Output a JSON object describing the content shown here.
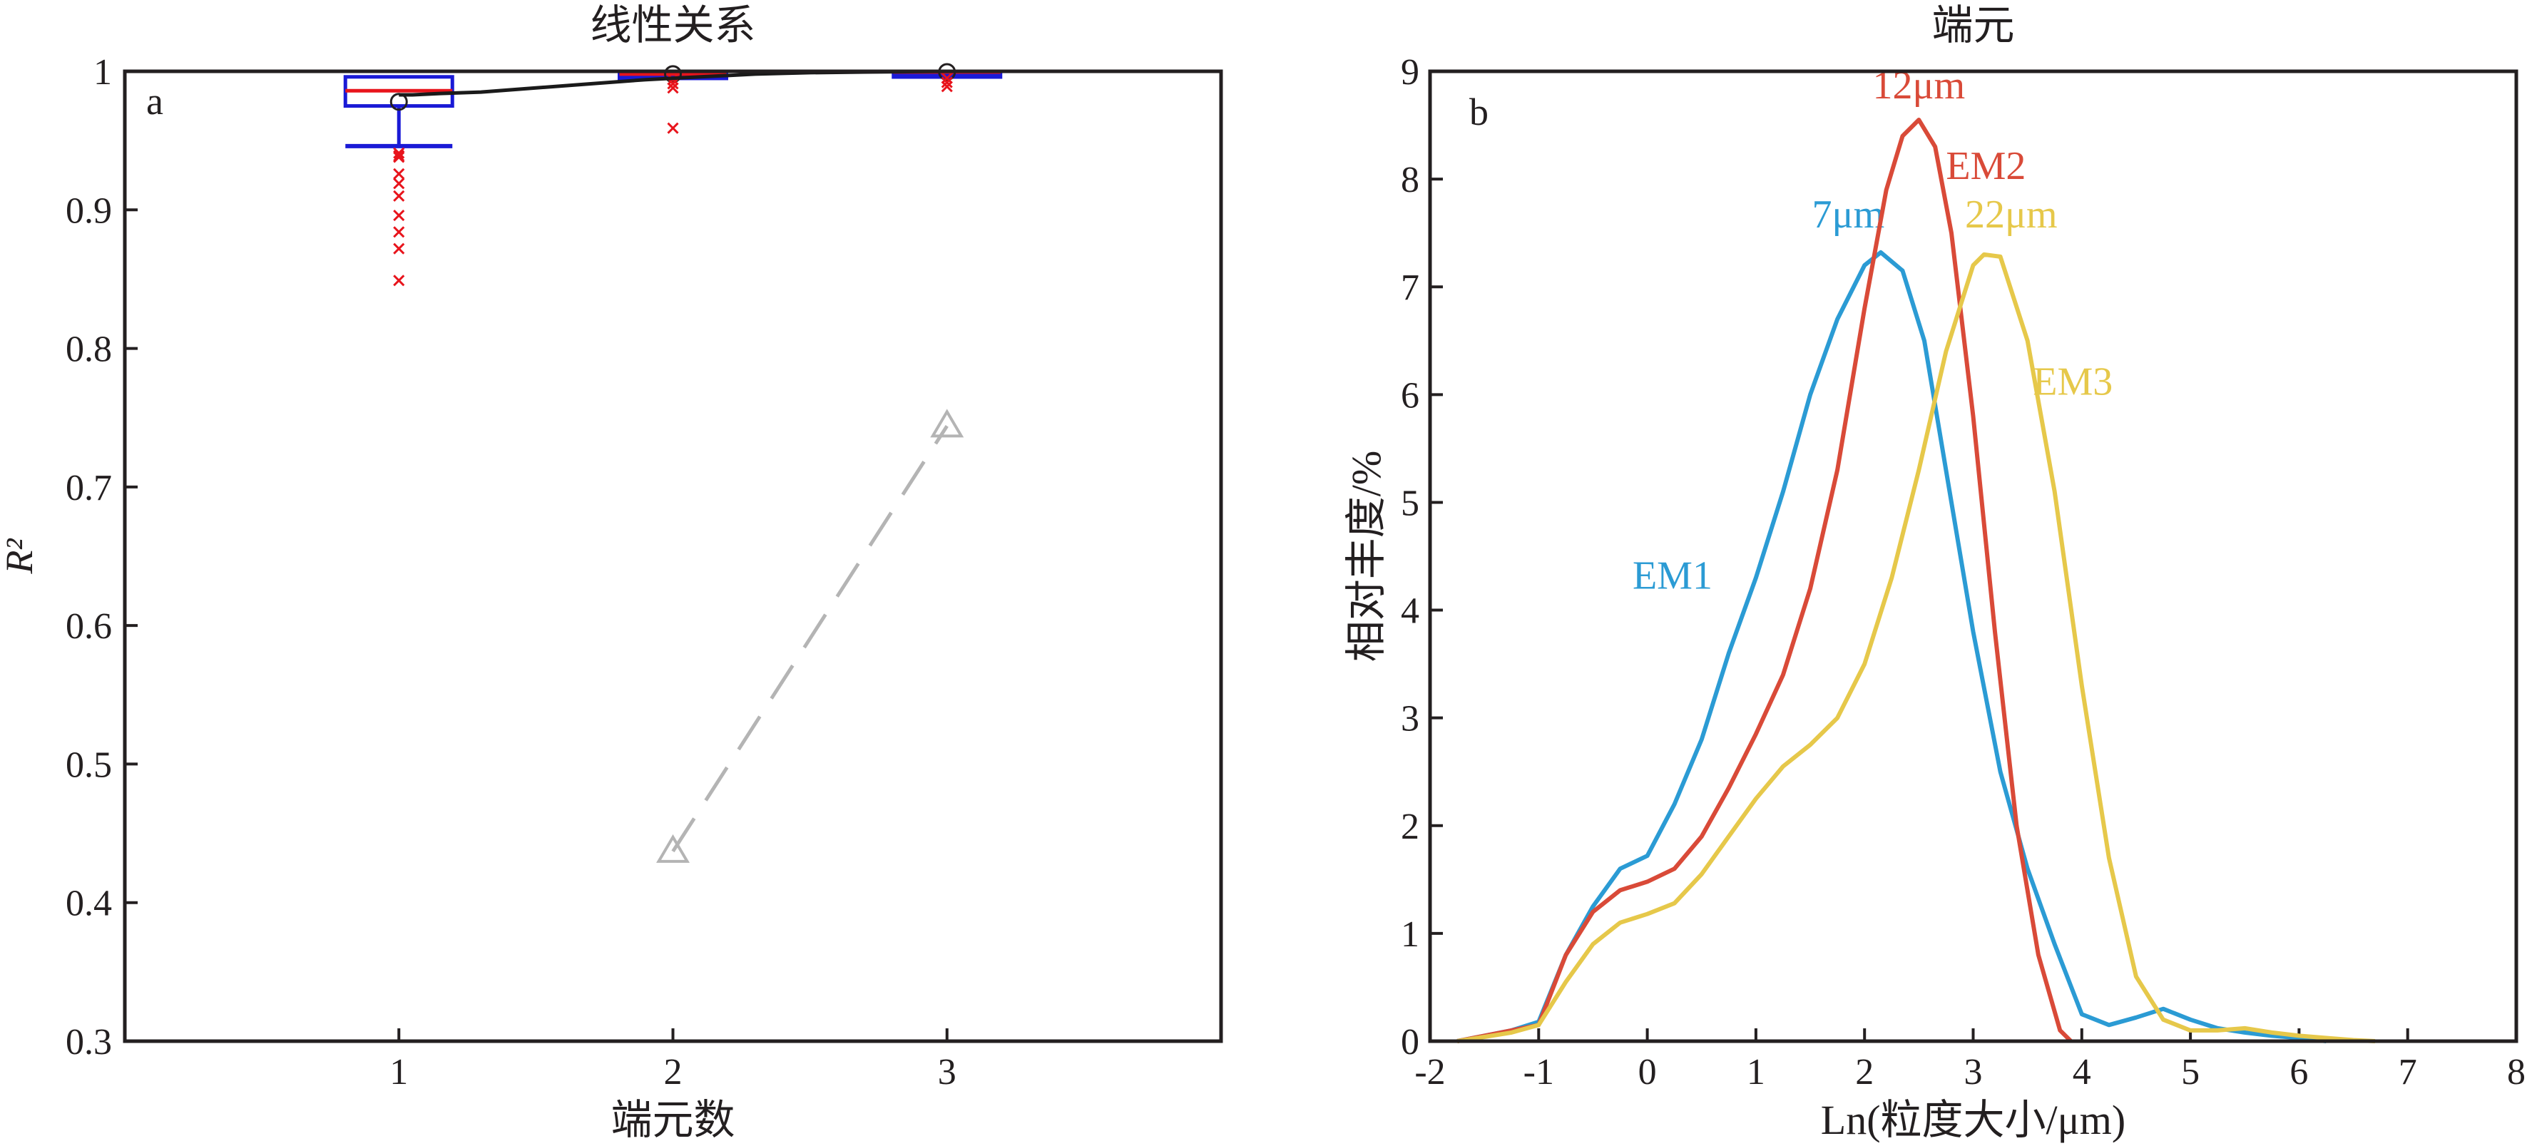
{
  "chart_data": [
    {
      "type": "box",
      "panel_label": "a",
      "title": "线性关系",
      "xlabel": "端元数",
      "ylabel": "R²",
      "xlim": [
        0,
        4
      ],
      "ylim": [
        0.3,
        1.0
      ],
      "xticks": [
        "1",
        "2",
        "3"
      ],
      "yticks": [
        "0.3",
        "0.4",
        "0.5",
        "0.6",
        "0.7",
        "0.8",
        "0.9",
        "1"
      ],
      "grid": false,
      "boxes": [
        {
          "x": 1,
          "q1": 0.975,
          "median": 0.986,
          "q3": 0.996,
          "whisker_low": 0.946,
          "whisker_high": 0.996,
          "mean": 0.978,
          "outliers": [
            0.941,
            0.939,
            0.938,
            0.926,
            0.919,
            0.91,
            0.896,
            0.884,
            0.872,
            0.849
          ]
        },
        {
          "x": 2,
          "q1": 0.997,
          "median": 0.998,
          "q3": 0.999,
          "whisker_low": 0.996,
          "whisker_high": 0.999,
          "mean": 0.998,
          "outliers": [
            0.994,
            0.991,
            0.988,
            0.959
          ]
        },
        {
          "x": 3,
          "q1": 0.999,
          "median": 0.9995,
          "q3": 1.0,
          "whisker_low": 0.999,
          "whisker_high": 1.0,
          "mean": 0.9995,
          "outliers": [
            0.995,
            0.992,
            0.989
          ]
        }
      ],
      "cumulative_line": {
        "x": [
          1.0,
          1.05,
          1.15,
          1.3,
          1.5,
          1.7,
          1.9,
          2.1,
          2.3,
          2.5,
          2.7,
          3.0,
          3.2
        ],
        "y": [
          0.983,
          0.983,
          0.984,
          0.985,
          0.988,
          0.991,
          0.994,
          0.996,
          0.998,
          0.999,
          0.9995,
          1.0,
          1.0
        ]
      },
      "mean_r2_line": {
        "x": [
          2,
          3
        ],
        "y": [
          0.437,
          0.744
        ]
      },
      "colors": {
        "box": "#1a1ad6",
        "median": "#e8141c",
        "outlier": "#e8141c",
        "cumulative": "#1a1a1a",
        "mean_r2": "#b4b4b4"
      }
    },
    {
      "type": "line",
      "panel_label": "b",
      "title": "端元",
      "xlabel": "Ln(粒度大小/μm)",
      "ylabel": "相对丰度/%",
      "xlim": [
        -2,
        8
      ],
      "ylim": [
        0,
        9
      ],
      "xticks": [
        "-2",
        "-1",
        "0",
        "1",
        "2",
        "3",
        "4",
        "5",
        "6",
        "7",
        "8"
      ],
      "yticks": [
        "0",
        "1",
        "2",
        "3",
        "4",
        "5",
        "6",
        "7",
        "8",
        "9"
      ],
      "grid": false,
      "series": [
        {
          "name": "EM1",
          "mode": "7μm",
          "color": "#2b9bd4",
          "x": [
            -1.75,
            -1.5,
            -1.25,
            -1.0,
            -0.75,
            -0.5,
            -0.25,
            0.0,
            0.25,
            0.5,
            0.75,
            1.0,
            1.25,
            1.5,
            1.75,
            2.0,
            2.15,
            2.35,
            2.55,
            2.75,
            3.0,
            3.25,
            3.5,
            3.75,
            4.0,
            4.25,
            4.5,
            4.75,
            5.0,
            5.25,
            5.5,
            5.75,
            6.0,
            6.25
          ],
          "y": [
            0.0,
            0.05,
            0.1,
            0.18,
            0.8,
            1.25,
            1.6,
            1.72,
            2.2,
            2.8,
            3.6,
            4.3,
            5.1,
            6.0,
            6.7,
            7.2,
            7.32,
            7.15,
            6.5,
            5.3,
            3.8,
            2.5,
            1.6,
            0.9,
            0.25,
            0.15,
            0.22,
            0.3,
            0.2,
            0.12,
            0.08,
            0.05,
            0.03,
            0.0
          ]
        },
        {
          "name": "EM2",
          "mode": "12μm",
          "color": "#d94a38",
          "x": [
            -1.75,
            -1.5,
            -1.25,
            -1.0,
            -0.75,
            -0.5,
            -0.25,
            0.0,
            0.25,
            0.5,
            0.75,
            1.0,
            1.25,
            1.5,
            1.75,
            2.0,
            2.2,
            2.35,
            2.5,
            2.65,
            2.8,
            3.0,
            3.2,
            3.4,
            3.6,
            3.8,
            3.9
          ],
          "y": [
            0.0,
            0.05,
            0.1,
            0.15,
            0.8,
            1.2,
            1.4,
            1.48,
            1.6,
            1.9,
            2.35,
            2.85,
            3.4,
            4.2,
            5.3,
            6.8,
            7.9,
            8.4,
            8.55,
            8.3,
            7.5,
            5.8,
            3.8,
            2.0,
            0.8,
            0.1,
            0.0
          ]
        },
        {
          "name": "EM3",
          "mode": "22μm",
          "color": "#e6c84a",
          "x": [
            -1.75,
            -1.5,
            -1.25,
            -1.0,
            -0.75,
            -0.5,
            -0.25,
            0.0,
            0.25,
            0.5,
            0.75,
            1.0,
            1.25,
            1.5,
            1.75,
            2.0,
            2.25,
            2.5,
            2.75,
            3.0,
            3.1,
            3.25,
            3.5,
            3.75,
            4.0,
            4.25,
            4.5,
            4.75,
            5.0,
            5.25,
            5.5,
            5.75,
            6.0,
            6.25,
            6.5,
            6.7
          ],
          "y": [
            0.0,
            0.04,
            0.08,
            0.15,
            0.55,
            0.9,
            1.1,
            1.18,
            1.28,
            1.55,
            1.9,
            2.25,
            2.55,
            2.75,
            3.0,
            3.5,
            4.3,
            5.3,
            6.4,
            7.2,
            7.3,
            7.28,
            6.5,
            5.1,
            3.3,
            1.7,
            0.6,
            0.2,
            0.1,
            0.1,
            0.12,
            0.08,
            0.05,
            0.03,
            0.01,
            0.0
          ]
        }
      ],
      "colors": {
        "EM1": "#2b9bd4",
        "EM2": "#d94a38",
        "EM3": "#e6c84a"
      }
    }
  ]
}
